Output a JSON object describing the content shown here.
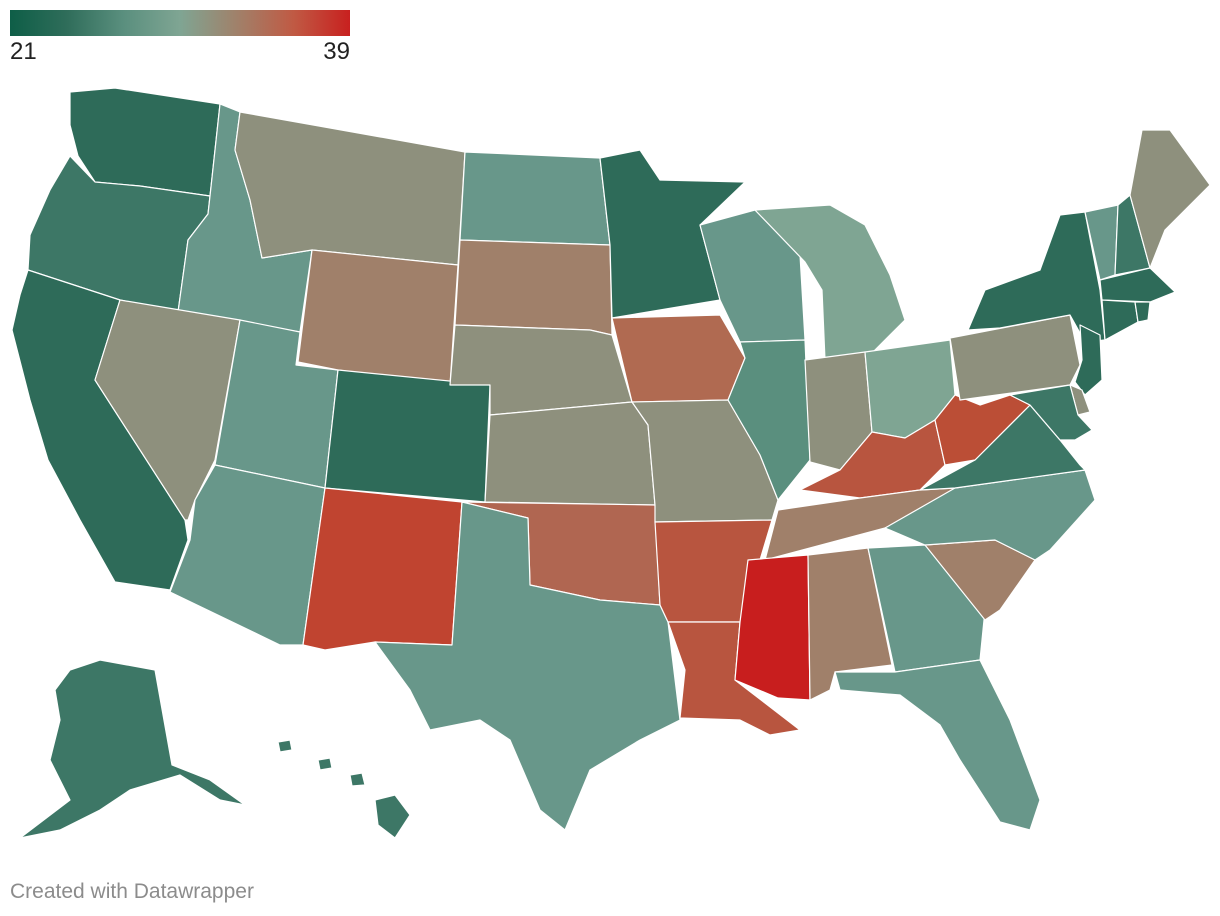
{
  "legend": {
    "min_label": "21",
    "max_label": "39",
    "min": 21,
    "max": 39,
    "gradient": [
      "#0e5e47",
      "#2f6d5a",
      "#5a8f7e",
      "#7fa593",
      "#a0816a",
      "#c05a44",
      "#c8201f"
    ]
  },
  "credit": "Created with Datawrapper",
  "states": [
    {
      "id": "WA",
      "color": "#2e6b59"
    },
    {
      "id": "OR",
      "color": "#3d7766"
    },
    {
      "id": "CA",
      "color": "#2e6b59"
    },
    {
      "id": "ID",
      "color": "#68978a"
    },
    {
      "id": "NV",
      "color": "#8e907d"
    },
    {
      "id": "UT",
      "color": "#68978a"
    },
    {
      "id": "AZ",
      "color": "#68978a"
    },
    {
      "id": "MT",
      "color": "#8e907d"
    },
    {
      "id": "WY",
      "color": "#a0806a"
    },
    {
      "id": "CO",
      "color": "#2e6b59"
    },
    {
      "id": "NM",
      "color": "#c04430"
    },
    {
      "id": "ND",
      "color": "#68978a"
    },
    {
      "id": "SD",
      "color": "#a0806a"
    },
    {
      "id": "NE",
      "color": "#8e907d"
    },
    {
      "id": "KS",
      "color": "#8e907d"
    },
    {
      "id": "OK",
      "color": "#b06651"
    },
    {
      "id": "TX",
      "color": "#68978a"
    },
    {
      "id": "MN",
      "color": "#2e6b59"
    },
    {
      "id": "IA",
      "color": "#b06a51"
    },
    {
      "id": "MO",
      "color": "#8e907d"
    },
    {
      "id": "AR",
      "color": "#b8553f"
    },
    {
      "id": "LA",
      "color": "#b8553f"
    },
    {
      "id": "WI",
      "color": "#68978a"
    },
    {
      "id": "IL",
      "color": "#5a8f7e"
    },
    {
      "id": "MI",
      "color": "#7fa593"
    },
    {
      "id": "IN",
      "color": "#8e907d"
    },
    {
      "id": "OH",
      "color": "#7fa593"
    },
    {
      "id": "KY",
      "color": "#b8553f"
    },
    {
      "id": "TN",
      "color": "#a0806a"
    },
    {
      "id": "MS",
      "color": "#c81e1e"
    },
    {
      "id": "AL",
      "color": "#a0806a"
    },
    {
      "id": "GA",
      "color": "#68978a"
    },
    {
      "id": "FL",
      "color": "#68978a"
    },
    {
      "id": "SC",
      "color": "#a0806a"
    },
    {
      "id": "NC",
      "color": "#68978a"
    },
    {
      "id": "VA",
      "color": "#3d7766"
    },
    {
      "id": "WV",
      "color": "#bb4e36"
    },
    {
      "id": "PA",
      "color": "#8e907d"
    },
    {
      "id": "NY",
      "color": "#2e6b59"
    },
    {
      "id": "VT",
      "color": "#68978a"
    },
    {
      "id": "NH",
      "color": "#3d7766"
    },
    {
      "id": "ME",
      "color": "#8e907d"
    },
    {
      "id": "MA",
      "color": "#2e6b59"
    },
    {
      "id": "CT",
      "color": "#2e6b59"
    },
    {
      "id": "RI",
      "color": "#2e6b59"
    },
    {
      "id": "NJ",
      "color": "#2e6b59"
    },
    {
      "id": "DE",
      "color": "#8e907d"
    },
    {
      "id": "MD",
      "color": "#3d7766"
    },
    {
      "id": "AK",
      "color": "#3d7766"
    },
    {
      "id": "HI",
      "color": "#3d7766"
    }
  ]
}
